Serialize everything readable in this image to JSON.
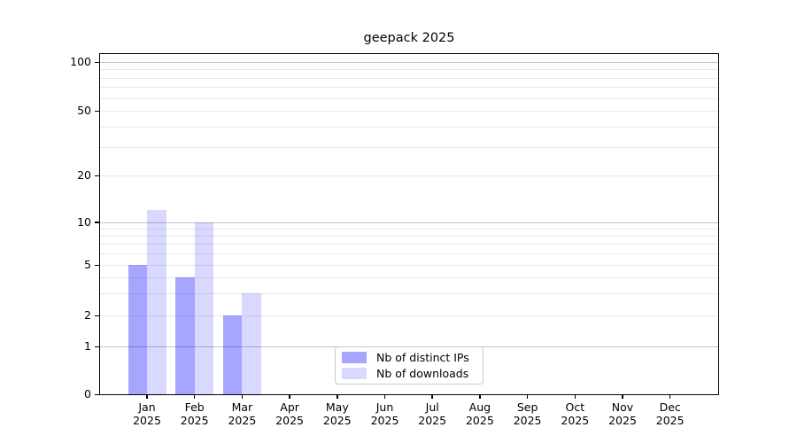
{
  "chart_data": {
    "type": "bar",
    "title": "geepack 2025",
    "categories": [
      "Jan",
      "Feb",
      "Mar",
      "Apr",
      "May",
      "Jun",
      "Jul",
      "Aug",
      "Sep",
      "Oct",
      "Nov",
      "Dec"
    ],
    "year_label": "2025",
    "series": [
      {
        "name": "Nb of distinct IPs",
        "color": "#0000ff59",
        "values": [
          5,
          4,
          2,
          0,
          0,
          0,
          0,
          0,
          0,
          0,
          0,
          0
        ]
      },
      {
        "name": "Nb of downloads",
        "color": "#0000ff26",
        "values": [
          12,
          10,
          3,
          0,
          0,
          0,
          0,
          0,
          0,
          0,
          0,
          0
        ]
      }
    ],
    "yscale": "symlog",
    "yticks": [
      0,
      1,
      2,
      5,
      10,
      20,
      50,
      100
    ],
    "ylim": [
      0,
      112
    ],
    "grid": "horizontal",
    "legend_position": "lower center",
    "colors": {
      "major_grid": "#c3c3c3",
      "minor_grid": "#e8e8e8",
      "spine": "#000000",
      "background": "#ffffff"
    }
  }
}
